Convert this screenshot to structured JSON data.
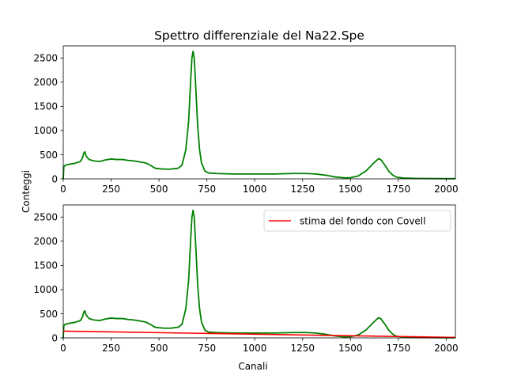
{
  "chart_data": {
    "title": "Spettro differenziale del Na22.Spe",
    "ylabel": "Conteggi",
    "xlabel": "Canali",
    "colors": {
      "spectrum": "#008000",
      "background": "#ff0000"
    },
    "panels": [
      {
        "id": "top",
        "type": "line",
        "xlim": [
          0,
          2048
        ],
        "ylim": [
          0,
          2750
        ],
        "xticks": [
          0,
          250,
          500,
          750,
          1000,
          1250,
          1500,
          1750,
          2000
        ],
        "yticks": [
          0,
          500,
          1000,
          1500,
          2000,
          2500
        ],
        "grid": false,
        "series": [
          {
            "points": [
              [
                0,
                0
              ],
              [
                3,
                250
              ],
              [
                10,
                280
              ],
              [
                30,
                300
              ],
              [
                60,
                320
              ],
              [
                90,
                360
              ],
              [
                100,
                430
              ],
              [
                108,
                540
              ],
              [
                113,
                560
              ],
              [
                120,
                470
              ],
              [
                135,
                400
              ],
              [
                160,
                370
              ],
              [
                190,
                360
              ],
              [
                220,
                390
              ],
              [
                250,
                410
              ],
              [
                280,
                400
              ],
              [
                310,
                400
              ],
              [
                340,
                380
              ],
              [
                370,
                370
              ],
              [
                400,
                350
              ],
              [
                430,
                330
              ],
              [
                450,
                290
              ],
              [
                480,
                220
              ],
              [
                500,
                210
              ],
              [
                530,
                200
              ],
              [
                560,
                200
              ],
              [
                600,
                220
              ],
              [
                620,
                280
              ],
              [
                640,
                600
              ],
              [
                655,
                1200
              ],
              [
                665,
                2000
              ],
              [
                672,
                2500
              ],
              [
                678,
                2640
              ],
              [
                684,
                2500
              ],
              [
                692,
                1900
              ],
              [
                702,
                1100
              ],
              [
                712,
                600
              ],
              [
                722,
                330
              ],
              [
                740,
                160
              ],
              [
                760,
                120
              ],
              [
                800,
                110
              ],
              [
                850,
                105
              ],
              [
                900,
                100
              ],
              [
                1000,
                100
              ],
              [
                1100,
                100
              ],
              [
                1200,
                110
              ],
              [
                1270,
                110
              ],
              [
                1320,
                100
              ],
              [
                1370,
                75
              ],
              [
                1420,
                40
              ],
              [
                1470,
                20
              ],
              [
                1500,
                25
              ],
              [
                1540,
                60
              ],
              [
                1580,
                160
              ],
              [
                1610,
                280
              ],
              [
                1630,
                360
              ],
              [
                1648,
                420
              ],
              [
                1660,
                390
              ],
              [
                1680,
                280
              ],
              [
                1700,
                160
              ],
              [
                1720,
                80
              ],
              [
                1740,
                35
              ],
              [
                1780,
                15
              ],
              [
                1850,
                8
              ],
              [
                1950,
                5
              ],
              [
                2048,
                3
              ]
            ]
          }
        ]
      },
      {
        "id": "bottom",
        "type": "line",
        "xlim": [
          0,
          2048
        ],
        "ylim": [
          0,
          2750
        ],
        "xticks": [
          0,
          250,
          500,
          750,
          1000,
          1250,
          1500,
          1750,
          2000
        ],
        "yticks": [
          0,
          500,
          1000,
          1500,
          2000,
          2500
        ],
        "grid": false,
        "legend_position": "top-right",
        "legend": [
          "stima del fondo con Covell"
        ],
        "series": [
          {
            "points": [
              [
                0,
                0
              ],
              [
                3,
                250
              ],
              [
                10,
                280
              ],
              [
                30,
                300
              ],
              [
                60,
                320
              ],
              [
                90,
                360
              ],
              [
                100,
                430
              ],
              [
                108,
                540
              ],
              [
                113,
                560
              ],
              [
                120,
                470
              ],
              [
                135,
                400
              ],
              [
                160,
                370
              ],
              [
                190,
                360
              ],
              [
                220,
                390
              ],
              [
                250,
                410
              ],
              [
                280,
                400
              ],
              [
                310,
                400
              ],
              [
                340,
                380
              ],
              [
                370,
                370
              ],
              [
                400,
                350
              ],
              [
                430,
                330
              ],
              [
                450,
                290
              ],
              [
                480,
                220
              ],
              [
                500,
                210
              ],
              [
                530,
                200
              ],
              [
                560,
                200
              ],
              [
                600,
                220
              ],
              [
                620,
                280
              ],
              [
                640,
                600
              ],
              [
                655,
                1200
              ],
              [
                665,
                2000
              ],
              [
                672,
                2500
              ],
              [
                678,
                2640
              ],
              [
                684,
                2500
              ],
              [
                692,
                1900
              ],
              [
                702,
                1100
              ],
              [
                712,
                600
              ],
              [
                722,
                330
              ],
              [
                740,
                160
              ],
              [
                760,
                120
              ],
              [
                800,
                110
              ],
              [
                850,
                105
              ],
              [
                900,
                100
              ],
              [
                1000,
                100
              ],
              [
                1100,
                100
              ],
              [
                1200,
                110
              ],
              [
                1270,
                110
              ],
              [
                1320,
                100
              ],
              [
                1370,
                75
              ],
              [
                1420,
                40
              ],
              [
                1470,
                20
              ],
              [
                1500,
                25
              ],
              [
                1540,
                60
              ],
              [
                1580,
                160
              ],
              [
                1610,
                280
              ],
              [
                1630,
                360
              ],
              [
                1648,
                420
              ],
              [
                1660,
                390
              ],
              [
                1680,
                280
              ],
              [
                1700,
                160
              ],
              [
                1720,
                80
              ],
              [
                1740,
                35
              ],
              [
                1780,
                15
              ],
              [
                1850,
                8
              ],
              [
                1950,
                5
              ],
              [
                2048,
                3
              ]
            ]
          },
          {
            "name": "stima del fondo con Covell",
            "points": [
              [
                0,
                140
              ],
              [
                2048,
                10
              ]
            ]
          }
        ]
      }
    ]
  }
}
